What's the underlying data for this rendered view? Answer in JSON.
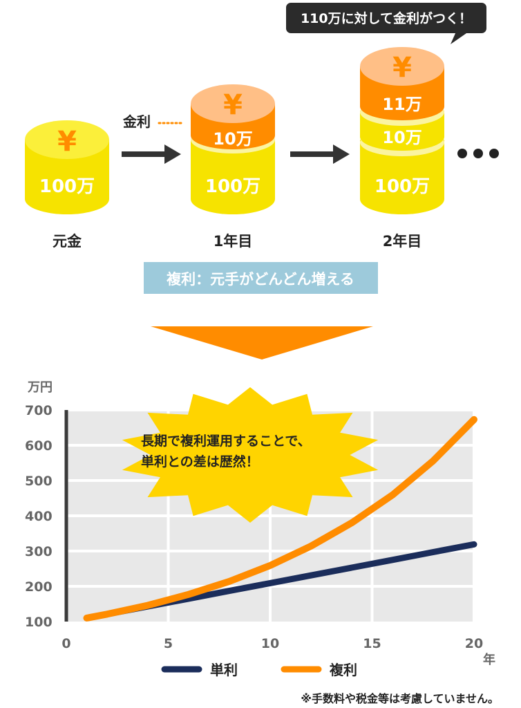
{
  "callout": "110万に対して金利がつく！",
  "interest_label": "金利",
  "stages": [
    {
      "label": "元金",
      "layers": [
        {
          "role": "symbol",
          "text": "¥"
        },
        {
          "role": "principal",
          "text": "100万"
        }
      ]
    },
    {
      "label": "1年目",
      "layers": [
        {
          "role": "symbol",
          "text": "¥"
        },
        {
          "role": "interest",
          "text": "10万"
        },
        {
          "role": "principal",
          "text": "100万"
        }
      ]
    },
    {
      "label": "2年目",
      "layers": [
        {
          "role": "symbol",
          "text": "¥"
        },
        {
          "role": "interest",
          "text": "11万"
        },
        {
          "role": "interest",
          "text": "10万"
        },
        {
          "role": "principal",
          "text": "100万"
        }
      ]
    }
  ],
  "banner": "複利：元手がどんどん増える",
  "burst_text": [
    "長期で複利運用することで、",
    "単利との差は歴然！"
  ],
  "note": "※手数料や税金等は考慮していません。",
  "colors": {
    "coin_yellow": "#f6e300",
    "coin_yellow_light": "#fbf4a0",
    "coin_orange": "#ff8c00",
    "coin_peach": "#ffbf86",
    "banner_bg": "#9dcadb",
    "triangle": "#ff8c00",
    "burst": "#ffd400",
    "simple_line": "#1b2d5b",
    "compound_line": "#ff8c00",
    "grid_bg": "#e8e8e8",
    "axis_text": "#666666"
  },
  "chart_data": {
    "type": "line",
    "title": "",
    "xlabel": "年",
    "ylabel": "万円",
    "xlim": [
      0,
      20
    ],
    "ylim": [
      100,
      700
    ],
    "x_ticks": [
      0,
      5,
      10,
      15,
      20
    ],
    "y_ticks": [
      100,
      200,
      300,
      400,
      500,
      600,
      700
    ],
    "grid": true,
    "legend": "bottom",
    "series": [
      {
        "name": "単利",
        "color": "#1b2d5b",
        "x": [
          1,
          2,
          4,
          6,
          8,
          10,
          12,
          14,
          16,
          18,
          20
        ],
        "y": [
          110,
          121,
          143,
          165,
          187,
          209,
          231,
          253,
          275,
          297,
          319
        ]
      },
      {
        "name": "複利",
        "color": "#ff8c00",
        "x": [
          1,
          2,
          4,
          6,
          8,
          10,
          12,
          14,
          16,
          18,
          20
        ],
        "y": [
          110,
          121,
          146,
          177,
          214,
          259,
          314,
          380,
          459,
          556,
          673
        ]
      }
    ]
  }
}
